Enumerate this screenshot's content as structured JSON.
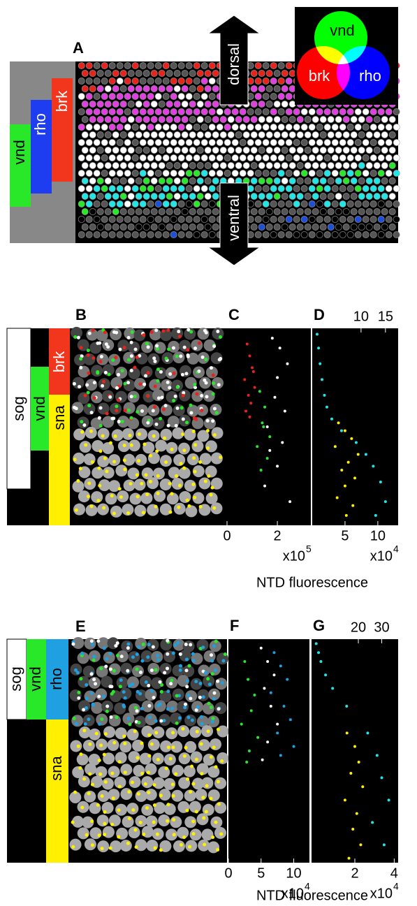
{
  "panel_a": {
    "label": "A",
    "bars": [
      "brk",
      "rho",
      "vnd"
    ],
    "arrow": [
      "dorsal",
      "ventral"
    ],
    "venn": [
      "vnd",
      "brk",
      "rho"
    ]
  },
  "panel_b": {
    "label": "B",
    "bars": [
      "sog",
      "vnd",
      "brk",
      "sna"
    ]
  },
  "panel_e": {
    "label": "E",
    "bars": [
      "sog",
      "vnd",
      "rho",
      "sna"
    ]
  },
  "x_axis_titles": [
    "NTD fluorescence",
    "NTD fluorescence"
  ],
  "chart_data": [
    {
      "type": "scatter",
      "title": "C",
      "xlim": [
        0,
        3.33
      ],
      "xticks": [
        0,
        2
      ],
      "x_multiplier": {
        "base": "x10",
        "exponent": "5"
      },
      "ylim": [
        100,
        0
      ],
      "series": [
        {
          "color": "#e8231b",
          "x": [
            0.8,
            0.9,
            1.0,
            0.7,
            1.1,
            0.85,
            0.95,
            0.75,
            1.05,
            0.9
          ],
          "values": [
            8,
            14,
            20,
            26,
            30,
            34,
            38,
            42,
            22,
            45
          ]
        },
        {
          "color": "#29e82a",
          "x": [
            1.3,
            1.5,
            1.4,
            1.7,
            1.2,
            1.6,
            1.45,
            1.35
          ],
          "values": [
            32,
            40,
            48,
            55,
            60,
            66,
            50,
            72
          ]
        },
        {
          "color": "#ffffff",
          "x": [
            1.8,
            2.1,
            2.4,
            2.0,
            1.9,
            2.3,
            1.6,
            2.2,
            1.7,
            2.0,
            1.5,
            2.5
          ],
          "values": [
            5,
            10,
            18,
            25,
            35,
            42,
            50,
            58,
            62,
            70,
            80,
            88
          ]
        }
      ]
    },
    {
      "type": "scatter",
      "title": "D",
      "xlim": [
        0,
        13.1
      ],
      "xticks": [
        5,
        10
      ],
      "x2lim": [
        0,
        17.6
      ],
      "x2ticks": [
        10,
        15
      ],
      "x_multiplier": {
        "base": "x10",
        "exponent": "4"
      },
      "ylim": [
        100,
        0
      ],
      "series": [
        {
          "color": "#22e6e6",
          "axis": "x2",
          "x": [
            1,
            1.3,
            1.6,
            2,
            2.5,
            3,
            4,
            6,
            9,
            11,
            12.5,
            14,
            15,
            13
          ],
          "values": [
            3,
            10,
            18,
            26,
            34,
            40,
            46,
            52,
            58,
            64,
            70,
            78,
            88,
            95
          ]
        },
        {
          "color": "#ffef00",
          "x": [
            4,
            5,
            6,
            3.5,
            7,
            5.5,
            4.5,
            6.5,
            5,
            3.8,
            6.2,
            5.2
          ],
          "values": [
            48,
            52,
            56,
            60,
            64,
            68,
            72,
            76,
            80,
            86,
            90,
            95
          ]
        }
      ]
    },
    {
      "type": "scatter",
      "title": "F",
      "xlim": [
        0,
        12.4
      ],
      "xticks": [
        0,
        5,
        10
      ],
      "x_multiplier": {
        "base": "x10",
        "exponent": "4"
      },
      "ylim": [
        100,
        0
      ],
      "series": [
        {
          "color": "#29e82a",
          "x": [
            2.5,
            3,
            4,
            3.5,
            2,
            4.5,
            3.2,
            2.8
          ],
          "values": [
            10,
            18,
            25,
            32,
            38,
            44,
            50,
            55
          ]
        },
        {
          "color": "#ffffff",
          "x": [
            5,
            6,
            7,
            5.5,
            6.5,
            7.5,
            6,
            5.2
          ],
          "values": [
            4,
            10,
            16,
            22,
            30,
            38,
            46,
            54
          ]
        },
        {
          "color": "#1fa0e0",
          "x": [
            7,
            8,
            9,
            6.5,
            8.5,
            9.5,
            7.5,
            10,
            8
          ],
          "values": [
            6,
            12,
            18,
            24,
            30,
            36,
            42,
            48,
            52
          ]
        }
      ]
    },
    {
      "type": "scatter",
      "title": "G",
      "xlim": [
        -0.2,
        4.2
      ],
      "xticks": [
        2,
        4
      ],
      "x2lim": [
        0,
        37
      ],
      "x2ticks": [
        20,
        30
      ],
      "x_multiplier": {
        "base": "x10",
        "exponent": "4"
      },
      "ylim": [
        100,
        0
      ],
      "series": [
        {
          "color": "#22e6e6",
          "axis": "x2",
          "x": [
            2,
            3,
            4,
            6,
            9,
            15,
            24,
            28,
            30,
            33,
            26,
            31
          ],
          "values": [
            2,
            6,
            10,
            16,
            22,
            30,
            42,
            52,
            62,
            72,
            82,
            92
          ]
        },
        {
          "color": "#ffef00",
          "x": [
            1.6,
            2,
            2.2,
            1.8,
            2.4,
            1.5,
            2.1,
            1.9,
            2.3,
            1.7
          ],
          "values": [
            42,
            48,
            55,
            60,
            66,
            72,
            78,
            85,
            92,
            98
          ]
        }
      ]
    }
  ]
}
